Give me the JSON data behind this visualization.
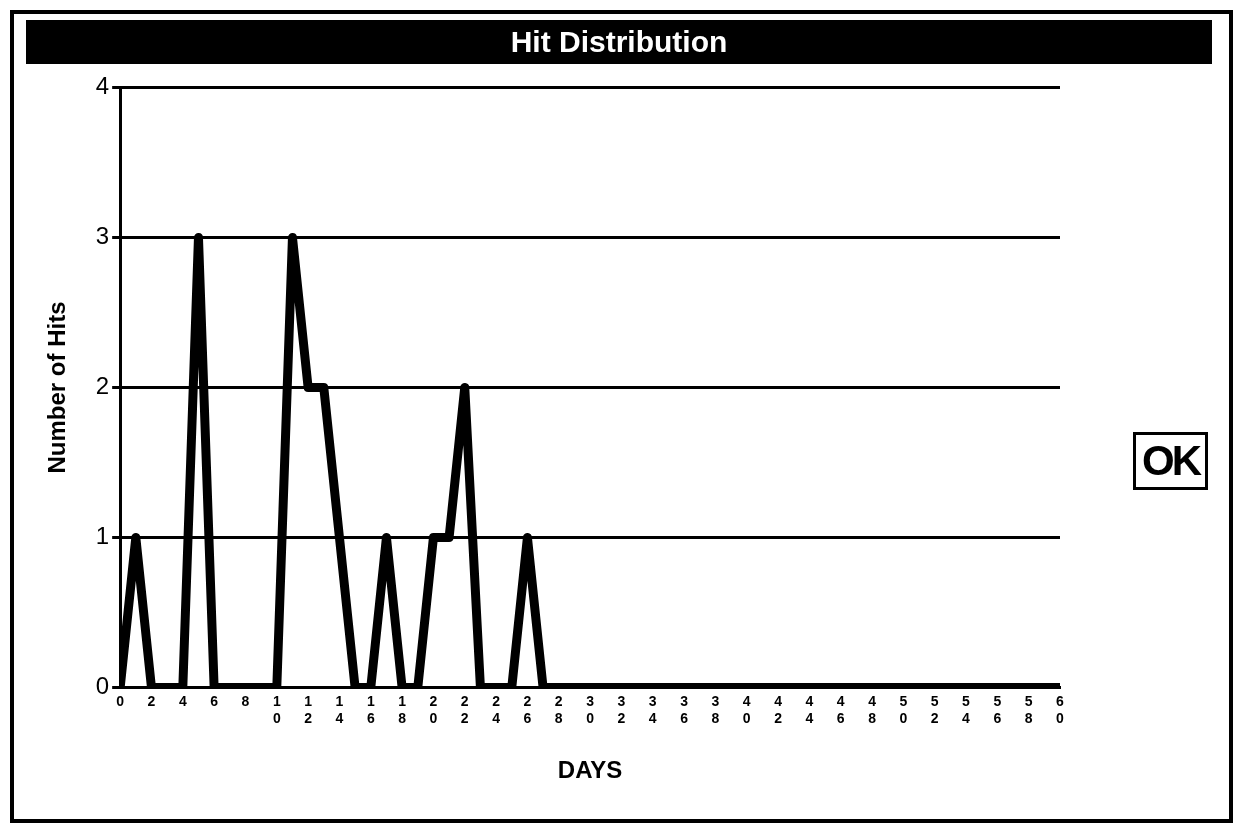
{
  "chart_data": {
    "type": "line",
    "title": "Hit Distribution",
    "xlabel": "DAYS",
    "ylabel": "Number of Hits",
    "x": [
      0,
      1,
      2,
      3,
      4,
      5,
      6,
      7,
      8,
      9,
      10,
      11,
      12,
      13,
      14,
      15,
      16,
      17,
      18,
      19,
      20,
      21,
      22,
      23,
      24,
      25,
      26,
      27,
      28,
      29,
      30,
      31,
      32,
      33,
      34,
      35,
      36,
      37,
      38,
      39,
      40,
      41,
      42,
      43,
      44,
      45,
      46,
      47,
      48,
      49,
      50,
      51,
      52,
      53,
      54,
      55,
      56,
      57,
      58,
      59,
      60
    ],
    "values": [
      0,
      1,
      0,
      0,
      0,
      3,
      0,
      0,
      0,
      0,
      0,
      3,
      2,
      2,
      1,
      0,
      0,
      1,
      0,
      0,
      1,
      1,
      2,
      0,
      0,
      0,
      1,
      0,
      0,
      0,
      0,
      0,
      0,
      0,
      0,
      0,
      0,
      0,
      0,
      0,
      0,
      0,
      0,
      0,
      0,
      0,
      0,
      0,
      0,
      0,
      0,
      0,
      0,
      0,
      0,
      0,
      0,
      0,
      0,
      0,
      0
    ],
    "color": "#000000",
    "xlim": [
      0,
      60
    ],
    "xticks": [
      0,
      2,
      4,
      6,
      8,
      10,
      12,
      14,
      16,
      18,
      20,
      22,
      24,
      26,
      28,
      30,
      32,
      34,
      36,
      38,
      40,
      42,
      44,
      46,
      48,
      50,
      52,
      54,
      56,
      58,
      60
    ],
    "ylim": [
      0,
      4
    ],
    "yticks": [
      0,
      1,
      2,
      3,
      4
    ],
    "grid": "y",
    "marker": "none",
    "line_style": "solid",
    "legend": false,
    "annotations": [
      "OK"
    ]
  }
}
